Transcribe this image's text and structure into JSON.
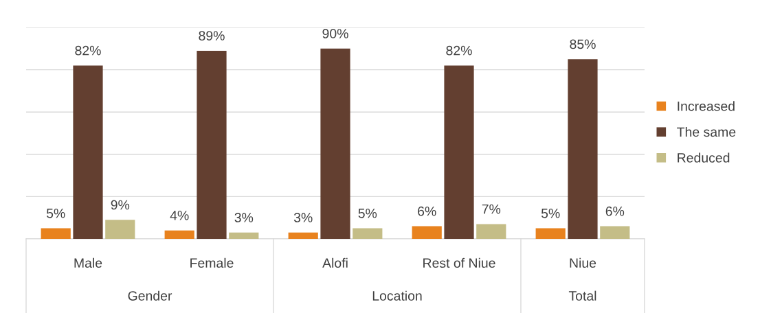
{
  "chart_data": {
    "type": "bar",
    "categories": [
      "Male",
      "Female",
      "Alofi",
      "Rest of Niue",
      "Niue"
    ],
    "series": [
      {
        "name": "Increased",
        "color": "#e8821e",
        "values": [
          5,
          4,
          3,
          6,
          5
        ],
        "value_labels": [
          "5%",
          "4%",
          "3%",
          "6%",
          "5%"
        ]
      },
      {
        "name": "The same",
        "color": "#633f30",
        "values": [
          82,
          89,
          90,
          82,
          85
        ],
        "value_labels": [
          "82%",
          "89%",
          "90%",
          "82%",
          "85%"
        ]
      },
      {
        "name": "Reduced",
        "color": "#c4bd87",
        "values": [
          9,
          3,
          5,
          7,
          6
        ],
        "value_labels": [
          "9%",
          "3%",
          "5%",
          "7%",
          "6%"
        ]
      }
    ],
    "annotations": [
      "Gender",
      "Location",
      "Total"
    ],
    "ylim": [
      0,
      100
    ],
    "yticks": [
      {
        "value": 0,
        "label": null
      },
      {
        "value": 20,
        "label": null
      },
      {
        "value": 40,
        "label": null
      },
      {
        "value": 60,
        "label": null
      },
      {
        "value": 80,
        "label": null
      },
      {
        "value": 100,
        "label": null
      }
    ],
    "grid": "y",
    "legend": "right",
    "tick_labels": "x"
  }
}
